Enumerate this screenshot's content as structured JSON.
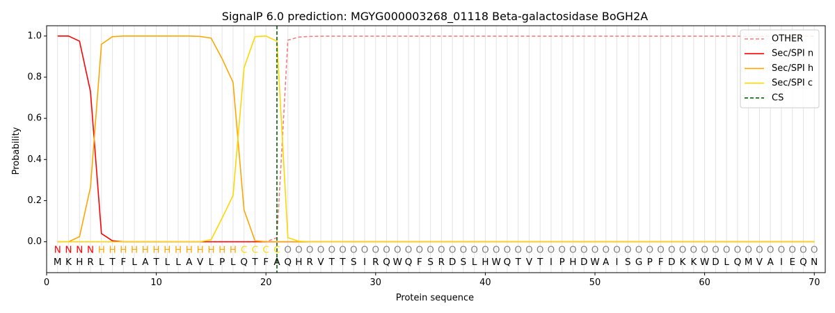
{
  "chart_data": {
    "type": "line",
    "title": "SignalP 6.0 prediction: MGYG000003268_01118 Beta-galactosidase BoGH2A",
    "xlabel": "Protein sequence",
    "ylabel": "Probability",
    "xlim": [
      0,
      71
    ],
    "ylim": [
      -0.15,
      1.05
    ],
    "x_ticks": [
      0,
      10,
      20,
      30,
      40,
      50,
      60,
      70
    ],
    "y_ticks": [
      0.0,
      0.2,
      0.4,
      0.6,
      0.8,
      1.0
    ],
    "x_tick_labels": [
      "0",
      "10",
      "20",
      "30",
      "40",
      "50",
      "60",
      "70"
    ],
    "y_tick_labels": [
      "0.0",
      "0.2",
      "0.4",
      "0.6",
      "0.8",
      "1.0"
    ],
    "grid": "vertical lines at each residue",
    "legend_position": "top-right",
    "sequence": [
      "M",
      "K",
      "H",
      "R",
      "L",
      "T",
      "F",
      "L",
      "A",
      "T",
      "L",
      "L",
      "A",
      "V",
      "L",
      "P",
      "L",
      "Q",
      "T",
      "F",
      "A",
      "Q",
      "H",
      "R",
      "V",
      "T",
      "T",
      "S",
      "I",
      "R",
      "Q",
      "W",
      "Q",
      "F",
      "S",
      "R",
      "D",
      "S",
      "L",
      "H",
      "W",
      "Q",
      "T",
      "V",
      "T",
      "I",
      "P",
      "H",
      "D",
      "W",
      "A",
      "I",
      "S",
      "G",
      "P",
      "F",
      "D",
      "K",
      "K",
      "W",
      "D",
      "L",
      "Q",
      "M",
      "V",
      "A",
      "I",
      "E",
      "Q",
      "N"
    ],
    "labels": [
      "N",
      "N",
      "N",
      "N",
      "H",
      "H",
      "H",
      "H",
      "H",
      "H",
      "H",
      "H",
      "H",
      "H",
      "H",
      "H",
      "H",
      "C",
      "C",
      "C",
      "C",
      "O",
      "O",
      "O",
      "O",
      "O",
      "O",
      "O",
      "O",
      "O",
      "O",
      "O",
      "O",
      "O",
      "O",
      "O",
      "O",
      "O",
      "O",
      "O",
      "O",
      "O",
      "O",
      "O",
      "O",
      "O",
      "O",
      "O",
      "O",
      "O",
      "O",
      "O",
      "O",
      "O",
      "O",
      "O",
      "O",
      "O",
      "O",
      "O",
      "O",
      "O",
      "O",
      "O",
      "O",
      "O",
      "O",
      "O",
      "O",
      "O"
    ],
    "label_colors": {
      "N": "#ff0000",
      "H": "#ffa500",
      "C": "#ffd700",
      "O": "#808080"
    },
    "series": [
      {
        "name": "OTHER",
        "color": "#f08080",
        "dash": "dashed",
        "values": [
          0,
          0,
          0,
          0,
          0,
          0,
          0,
          0,
          0,
          0,
          0,
          0,
          0,
          0,
          0,
          0,
          0,
          0,
          0,
          0,
          0.02,
          0.98,
          0.995,
          0.998,
          0.999,
          0.999,
          0.999,
          0.999,
          0.999,
          0.999,
          0.999,
          0.999,
          0.999,
          0.999,
          0.999,
          0.999,
          0.999,
          0.999,
          0.999,
          0.999,
          0.999,
          0.999,
          0.999,
          0.999,
          0.999,
          0.999,
          0.999,
          0.999,
          0.999,
          0.999,
          0.999,
          0.999,
          0.999,
          0.999,
          0.999,
          0.999,
          0.999,
          0.999,
          0.999,
          0.999,
          0.999,
          0.999,
          0.999,
          0.999,
          0.999,
          0.999,
          0.999,
          0.999,
          0.999,
          0.999
        ]
      },
      {
        "name": "Sec/SPI n",
        "color": "#ff0000",
        "dash": "solid",
        "values": [
          1.0,
          1.0,
          0.975,
          0.73,
          0.04,
          0.005,
          0,
          0,
          0,
          0,
          0,
          0,
          0,
          0,
          0,
          0,
          0,
          0,
          0,
          0,
          0,
          0,
          0,
          0,
          0,
          0,
          0,
          0,
          0,
          0,
          0,
          0,
          0,
          0,
          0,
          0,
          0,
          0,
          0,
          0,
          0,
          0,
          0,
          0,
          0,
          0,
          0,
          0,
          0,
          0,
          0,
          0,
          0,
          0,
          0,
          0,
          0,
          0,
          0,
          0,
          0,
          0,
          0,
          0,
          0,
          0,
          0,
          0,
          0,
          0
        ]
      },
      {
        "name": "Sec/SPI h",
        "color": "#ffa500",
        "dash": "solid",
        "values": [
          0,
          0,
          0.025,
          0.265,
          0.96,
          0.997,
          1.0,
          1.0,
          1.0,
          1.0,
          1.0,
          1.0,
          1.0,
          0.998,
          0.99,
          0.89,
          0.775,
          0.155,
          0.005,
          0,
          0,
          0,
          0,
          0,
          0,
          0,
          0,
          0,
          0,
          0,
          0,
          0,
          0,
          0,
          0,
          0,
          0,
          0,
          0,
          0,
          0,
          0,
          0,
          0,
          0,
          0,
          0,
          0,
          0,
          0,
          0,
          0,
          0,
          0,
          0,
          0,
          0,
          0,
          0,
          0,
          0,
          0,
          0,
          0,
          0,
          0,
          0,
          0,
          0,
          0
        ]
      },
      {
        "name": "Sec/SPI c",
        "color": "#ffd700",
        "dash": "solid",
        "values": [
          0,
          0,
          0,
          0,
          0,
          0,
          0,
          0,
          0,
          0,
          0,
          0,
          0,
          0,
          0.01,
          0.115,
          0.225,
          0.845,
          0.997,
          1.0,
          0.975,
          0.02,
          0.003,
          0,
          0,
          0,
          0,
          0,
          0,
          0,
          0,
          0,
          0,
          0,
          0,
          0,
          0,
          0,
          0,
          0,
          0,
          0,
          0,
          0,
          0,
          0,
          0,
          0,
          0,
          0,
          0,
          0,
          0,
          0,
          0,
          0,
          0,
          0,
          0,
          0,
          0,
          0,
          0,
          0,
          0,
          0,
          0,
          0,
          0,
          0
        ]
      },
      {
        "name": "CS",
        "color": "#006400",
        "dash": "dashed",
        "type": "vline",
        "x": 21
      }
    ]
  }
}
